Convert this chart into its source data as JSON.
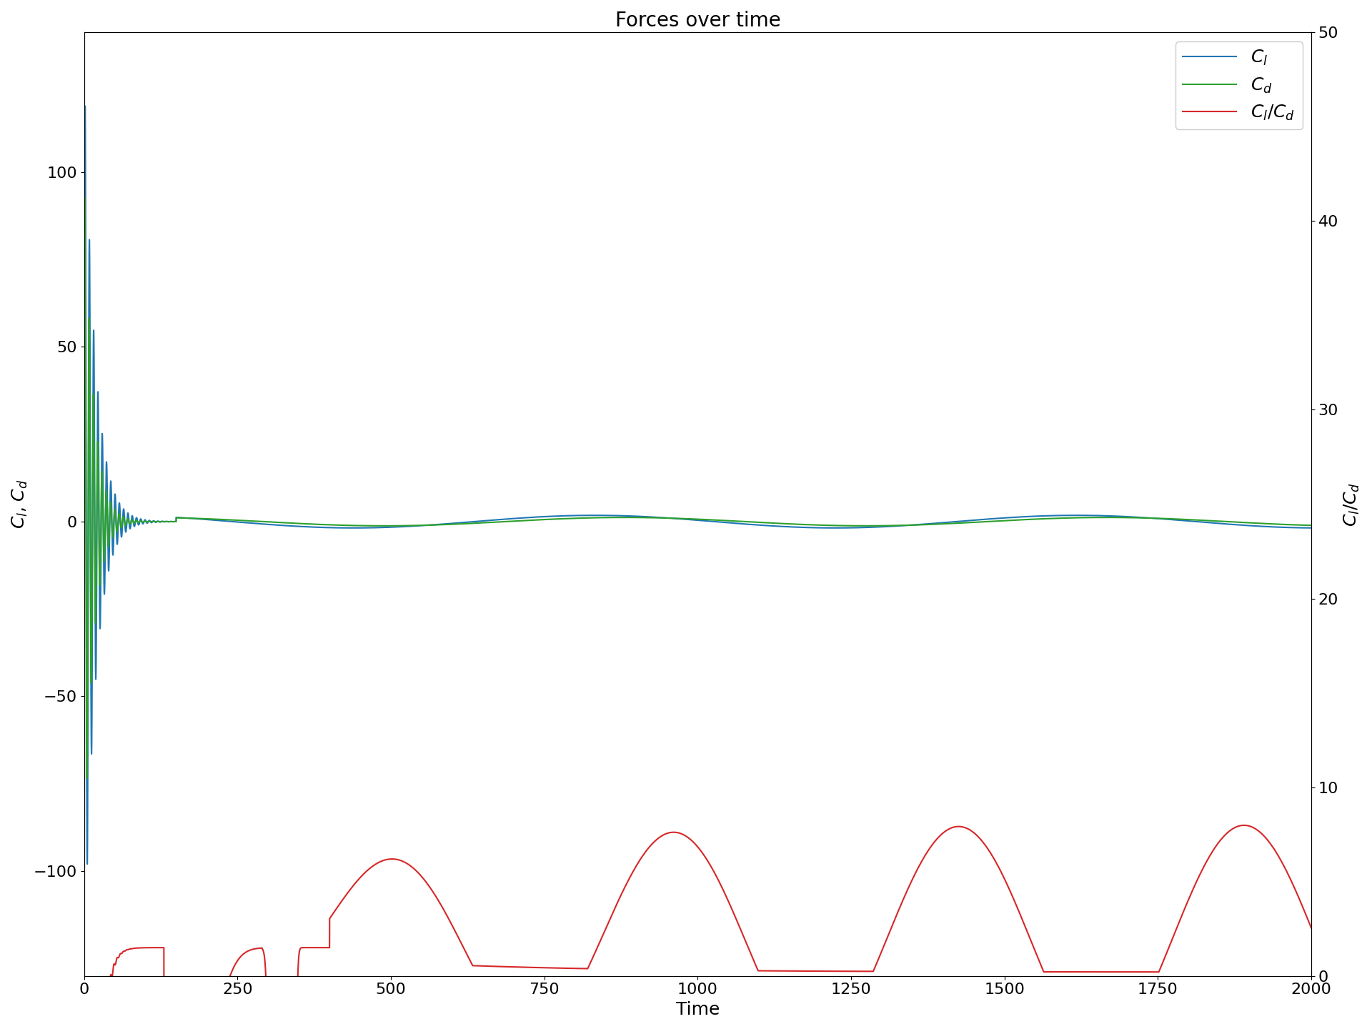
{
  "title": "Forces over time",
  "xlabel": "Time",
  "ylabel_left": "$C_l$, $C_d$",
  "ylabel_right": "$C_l$/$C_d$",
  "legend_labels": [
    "$C_l$",
    "$C_d$",
    "$C_l$/$C_d$"
  ],
  "line_colors": [
    "#1f77b4",
    "#2ca02c",
    "#d62728"
  ],
  "xlim": [
    0,
    2000
  ],
  "ylim_left": [
    -130,
    140
  ],
  "ylim_right": [
    0,
    50
  ],
  "x_ticks": [
    0,
    250,
    500,
    750,
    1000,
    1250,
    1500,
    1750,
    2000
  ],
  "title_fontsize": 20,
  "label_fontsize": 18,
  "tick_fontsize": 16,
  "legend_fontsize": 18,
  "figsize": [
    19.2,
    14.4
  ],
  "dpi": 100
}
